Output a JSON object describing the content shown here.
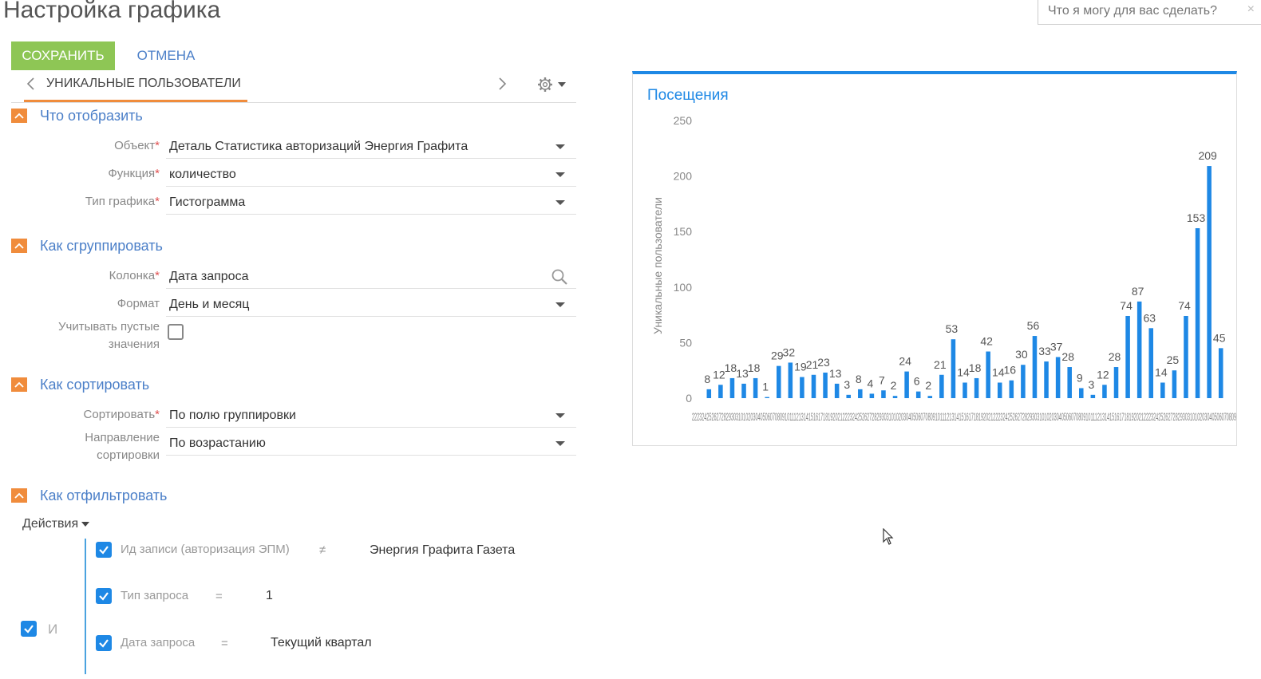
{
  "header": {
    "title": "Настройка графика",
    "search_placeholder": "Что я могу для вас сделать?",
    "close_glyph": "×"
  },
  "toolbar": {
    "save_label": "СОХРАНИТЬ",
    "cancel_label": "ОТМЕНА"
  },
  "tabs": {
    "active_label": "УНИКАЛЬНЫЕ ПОЛЬЗОВАТЕЛИ"
  },
  "sections": {
    "what": {
      "title": "Что отобразить",
      "object_label": "Объект",
      "object_value": "Деталь Статистика авторизаций Энергия Графита",
      "function_label": "Функция",
      "function_value": "количество",
      "type_label": "Тип графика",
      "type_value": "Гистограмма"
    },
    "group": {
      "title": "Как сгруппировать",
      "column_label": "Колонка",
      "column_value": "Дата запроса",
      "format_label": "Формат",
      "format_value": "День и месяц",
      "empty_label_1": "Учитывать пустые",
      "empty_label_2": "значения",
      "empty_checked": false
    },
    "sort": {
      "title": "Как сортировать",
      "sort_label": "Сортировать",
      "sort_value": "По полю группировки",
      "dir_label_1": "Направление",
      "dir_label_2": "сортировки",
      "dir_value": "По возрастанию"
    },
    "filter": {
      "title": "Как отфильтровать",
      "actions_label": "Действия",
      "group_op": "И",
      "conditions": [
        {
          "column": "Ид записи (авторизация ЭПМ)",
          "op": "≠",
          "value": "Энергия Графита Газета",
          "checked": true
        },
        {
          "column": "Тип запроса",
          "op": "=",
          "value": "1",
          "checked": true
        },
        {
          "column": "Дата запроса",
          "op": "=",
          "value": "Текущий квартал",
          "checked": true
        }
      ]
    }
  },
  "colors": {
    "accent_blue": "#1e88e5",
    "save_green": "#8ec655",
    "section_orange": "#f08c3c",
    "link_blue": "#4b7fc8"
  },
  "chart_data": {
    "type": "bar",
    "title": "Посещения",
    "ylabel": "Уникальные пользователи",
    "xlabel": "",
    "ylim": [
      0,
      250
    ],
    "yticks": [
      0,
      50,
      100,
      150,
      200,
      250
    ],
    "x_tick_text": "22232425262728293031010203040506070809101112131415161718192021222324252627282930310102030405060708091011121314151617181920212223242526272829303101020304050607080910111213141516171819202122232425262728293031010203040506070809",
    "values": [
      8,
      12,
      18,
      13,
      18,
      1,
      29,
      32,
      19,
      21,
      23,
      13,
      3,
      8,
      4,
      7,
      2,
      24,
      6,
      2,
      21,
      53,
      14,
      18,
      42,
      14,
      16,
      30,
      56,
      33,
      37,
      28,
      9,
      3,
      12,
      28,
      74,
      87,
      63,
      14,
      25,
      74,
      153,
      209,
      45
    ],
    "grid": false,
    "legend": "none"
  }
}
